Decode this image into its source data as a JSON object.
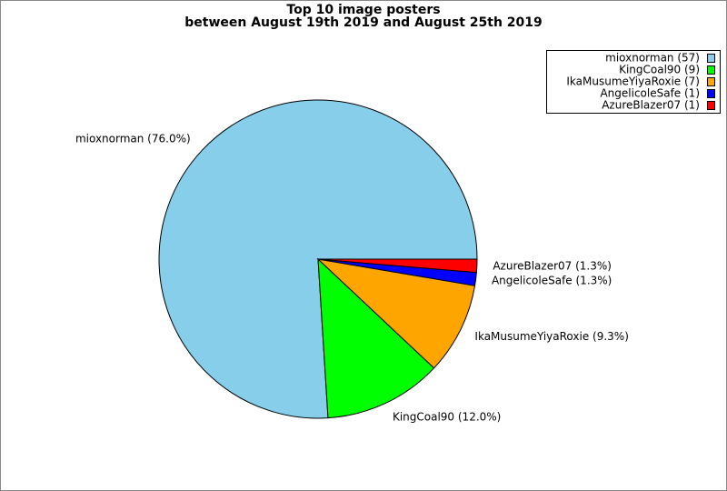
{
  "chart_data": {
    "type": "pie",
    "title": [
      "Top 10 image posters",
      "between August 19th 2019 and August 25th 2019"
    ],
    "values": [
      57,
      9,
      7,
      1,
      1
    ],
    "colors": [
      "#87ceeb",
      "#00ff00",
      "#ffa500",
      "#0000ff",
      "#ff0000"
    ],
    "slice_labels": [
      "mioxnorman (76.0%)",
      "KingCoal90 (12.0%)",
      "IkaMusumeYiyaRoxie (9.3%)",
      "AngelicoleSafe (1.3%)",
      "AzureBlazer07 (1.3%)"
    ],
    "legend": [
      "mioxnorman (57)",
      "KingCoal90 (9)",
      "IkaMusumeYiyaRoxie (7)",
      "AngelicoleSafe (1)",
      "AzureBlazer07 (1)"
    ],
    "legend_position": "upper right"
  }
}
